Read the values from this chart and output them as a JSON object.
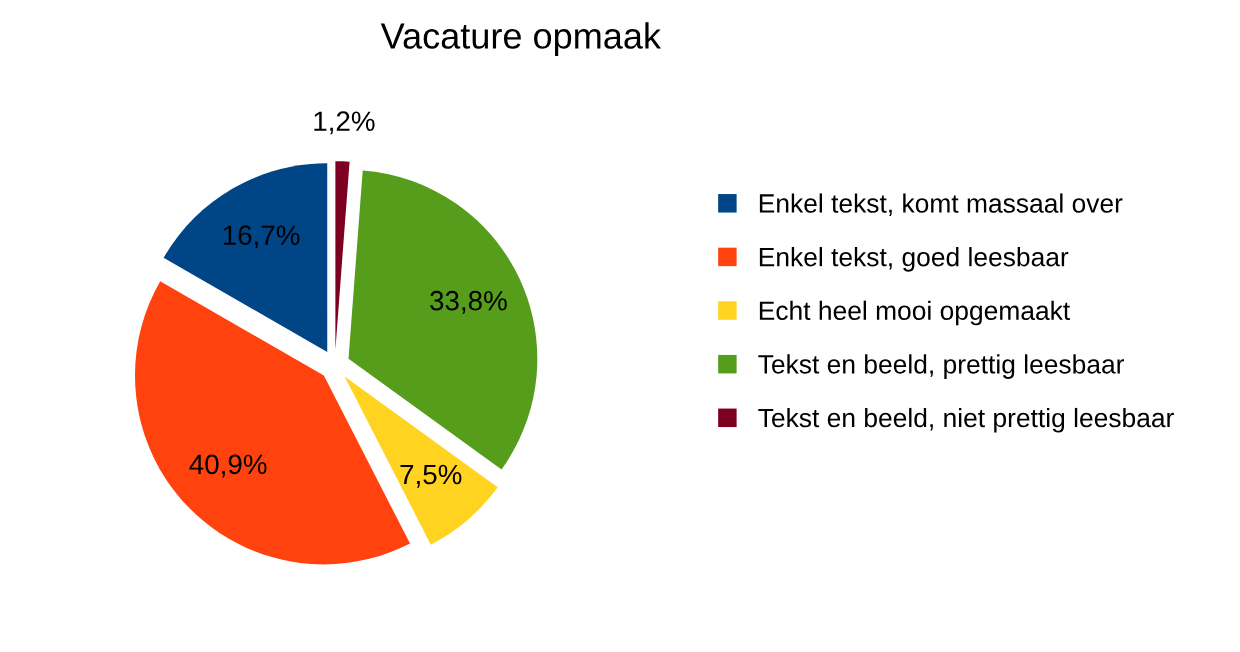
{
  "chart_data": {
    "type": "pie",
    "title": "Vacature opmaak",
    "categories": [
      "Enkel tekst, komt massaal over",
      "Enkel tekst, goed leesbaar",
      "Echt heel mooi opgemaakt",
      "Tekst en beeld, prettig leesbaar",
      "Tekst en beeld, niet prettig leesbaar"
    ],
    "values": [
      16.7,
      40.9,
      7.5,
      33.8,
      1.2
    ],
    "value_labels": [
      "16,7%",
      "40,9%",
      "7,5%",
      "33,8%",
      "1,2%"
    ],
    "colors": [
      "#004586",
      "#ff420e",
      "#ffd320",
      "#579d1c",
      "#7e0021"
    ],
    "legend": "right"
  }
}
